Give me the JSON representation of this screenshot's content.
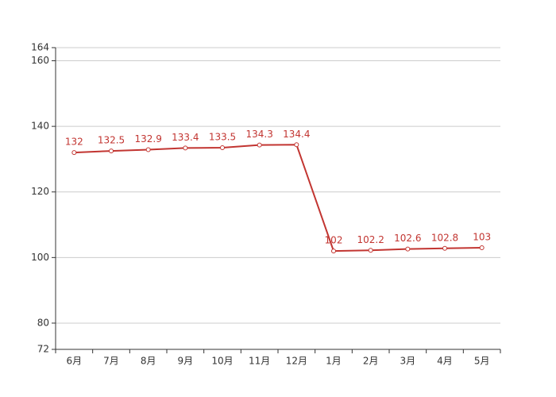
{
  "chart_data": {
    "type": "line",
    "categories": [
      "6月",
      "7月",
      "8月",
      "9月",
      "10月",
      "11月",
      "12月",
      "1月",
      "2月",
      "3月",
      "4月",
      "5月"
    ],
    "series": [
      {
        "color": "#c23531",
        "values": [
          132,
          132.5,
          132.9,
          133.4,
          133.5,
          134.3,
          134.4,
          102,
          102.2,
          102.6,
          102.8,
          103
        ]
      }
    ],
    "ylim": [
      72,
      164
    ],
    "yticks": [
      72,
      80,
      100,
      120,
      140,
      160,
      164
    ],
    "grid": true
  }
}
